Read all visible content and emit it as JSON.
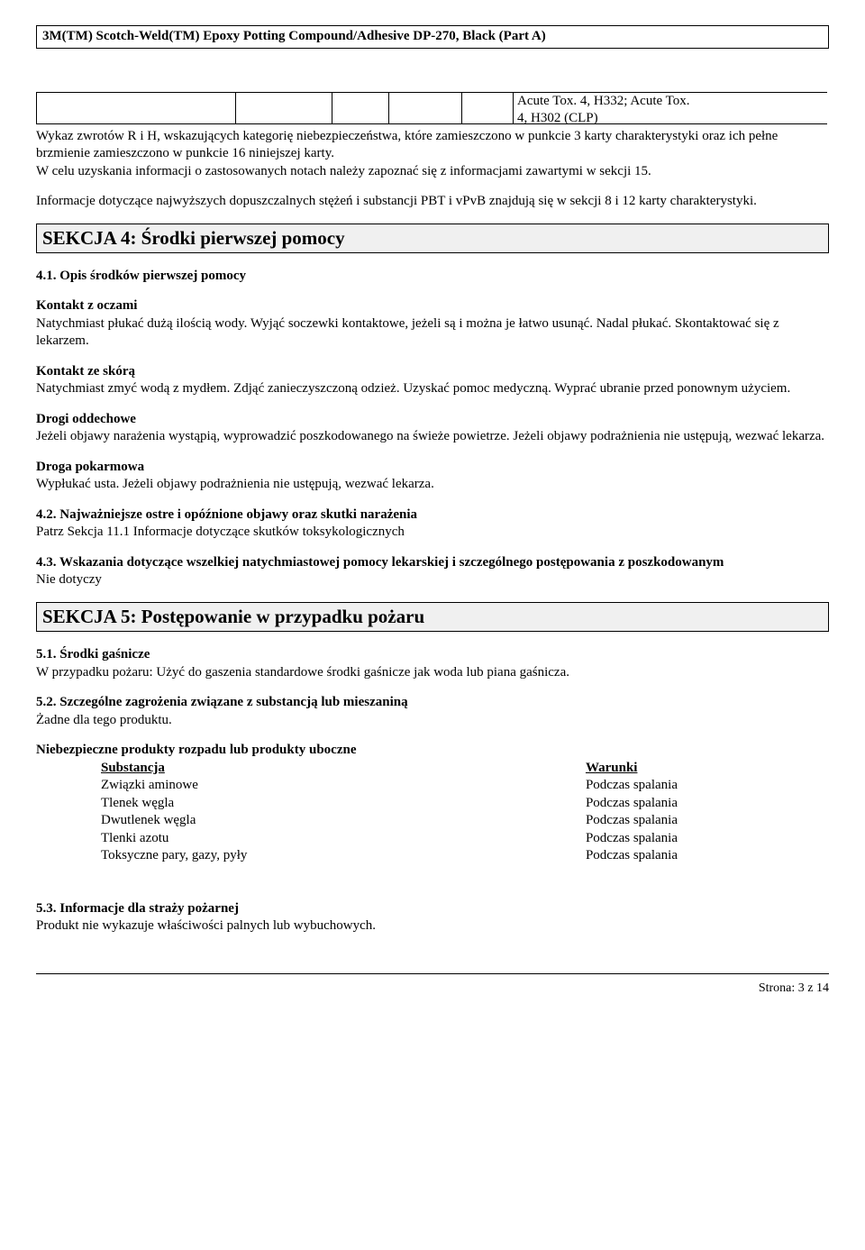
{
  "header": {
    "product": "3M(TM) Scotch-Weld(TM) Epoxy Potting Compound/Adhesive DP-270, Black (Part A)"
  },
  "tox": {
    "line1": "Acute Tox. 4, H332; Acute Tox.",
    "line2": "4, H302 (CLP)"
  },
  "intro": {
    "p1": "Wykaz zwrotów R i H, wskazujących kategorię niebezpieczeństwa, które zamieszczono w punkcie 3 karty charakterystyki oraz ich pełne brzmienie zamieszczono w punkcie 16 niniejszej karty.",
    "p2": "W celu uzyskania informacji o zastosowanych notach należy zapoznać się z informacjami zawartymi w sekcji 15.",
    "p3": "Informacje dotyczące najwyższych dopuszczalnych stężeń i substancji PBT i vPvB znajdują się w sekcji 8 i 12 karty charakterystyki."
  },
  "section4": {
    "title": "SEKCJA 4: Środki pierwszej pomocy",
    "s41": {
      "head": "4.1. Opis środków pierwszej pomocy",
      "eyes_h": "Kontakt z oczami",
      "eyes_t": "Natychmiast płukać dużą ilością wody. Wyjąć soczewki kontaktowe, jeżeli są i można je łatwo usunąć. Nadal płukać. Skontaktować się z lekarzem.",
      "skin_h": "Kontakt ze skórą",
      "skin_t": "Natychmiast zmyć wodą z mydłem. Zdjąć zanieczyszczoną odzież. Uzyskać pomoc medyczną. Wyprać ubranie przed ponownym użyciem.",
      "resp_h": "Drogi oddechowe",
      "resp_t": "Jeżeli objawy narażenia wystąpią, wyprowadzić poszkodowanego na świeże powietrze. Jeżeli objawy podrażnienia nie ustępują, wezwać lekarza.",
      "oral_h": "Droga pokarmowa",
      "oral_t": "Wypłukać usta. Jeżeli objawy podrażnienia nie ustępują, wezwać lekarza."
    },
    "s42": {
      "head": "4.2. Najważniejsze ostre i opóźnione objawy oraz skutki narażenia",
      "text": "Patrz Sekcja 11.1 Informacje dotyczące skutków toksykologicznych"
    },
    "s43": {
      "head": "4.3. Wskazania dotyczące wszelkiej natychmiastowej pomocy lekarskiej i szczególnego postępowania z poszkodowanym",
      "text": "Nie dotyczy"
    }
  },
  "section5": {
    "title": "SEKCJA 5: Postępowanie w przypadku pożaru",
    "s51": {
      "head": "5.1. Środki gaśnicze",
      "text": "W przypadku pożaru:  Użyć do gaszenia standardowe środki gaśnicze jak woda lub piana gaśnicza."
    },
    "s52": {
      "head": "5.2. Szczególne zagrożenia związane z substancją lub mieszaniną",
      "text": "Żadne dla tego produktu.",
      "haz_h": "Niebezpieczne produkty rozpadu lub produkty uboczne",
      "col_sub": "Substancja",
      "col_cond": "Warunki",
      "r1s": "Związki aminowe",
      "r1c": "Podczas spalania",
      "r2s": "Tlenek węgla",
      "r2c": "Podczas spalania",
      "r3s": "Dwutlenek węgla",
      "r3c": "Podczas spalania",
      "r4s": "Tlenki azotu",
      "r4c": "Podczas spalania",
      "r5s": "Toksyczne pary, gazy, pyły",
      "r5c": "Podczas spalania"
    },
    "s53": {
      "head": "5.3. Informacje dla straży pożarnej",
      "text": "Produkt nie wykazuje właściwości palnych lub wybuchowych."
    }
  },
  "footer": {
    "page": "Strona: 3 z  14"
  }
}
